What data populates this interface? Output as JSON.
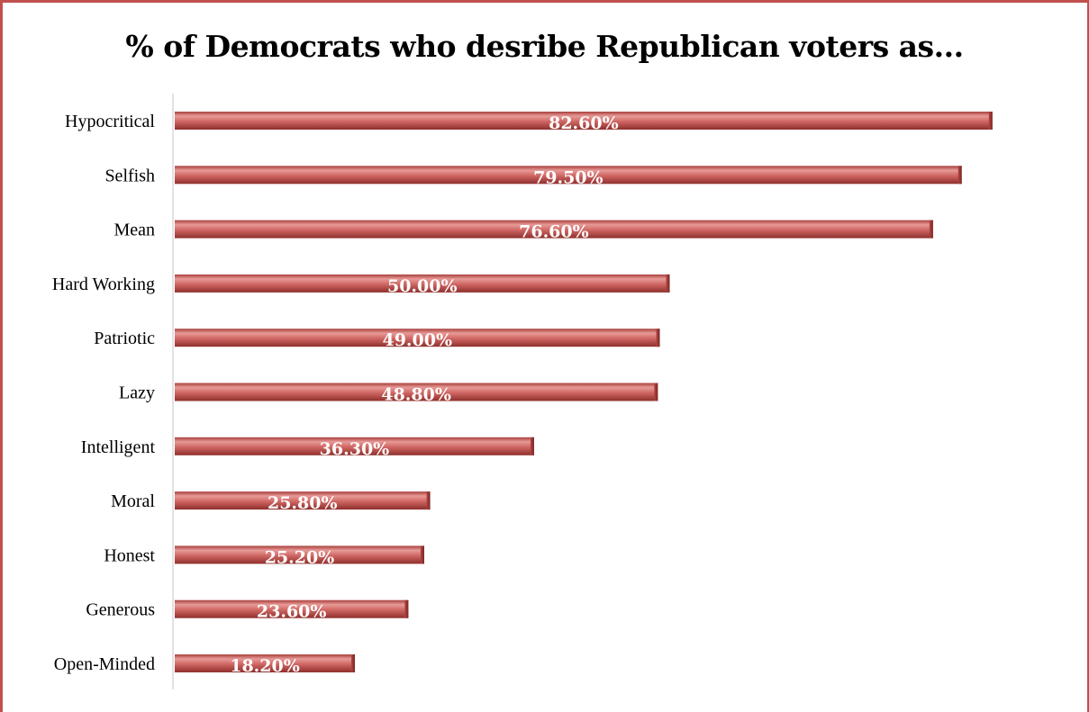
{
  "chart_data": {
    "type": "bar",
    "orientation": "horizontal",
    "title": "% of Democrats who desribe Republican voters as...",
    "categories": [
      "Hypocritical",
      "Selfish",
      "Mean",
      "Hard Working",
      "Patriotic",
      "Lazy",
      "Intelligent",
      "Moral",
      "Honest",
      "Generous",
      "Open-Minded"
    ],
    "values": [
      82.6,
      79.5,
      76.6,
      50.0,
      49.0,
      48.8,
      36.3,
      25.8,
      25.2,
      23.6,
      18.2
    ],
    "value_labels": [
      "82.60%",
      "79.50%",
      "76.60%",
      "50.00%",
      "49.00%",
      "48.80%",
      "36.30%",
      "25.80%",
      "25.20%",
      "23.60%",
      "18.20%"
    ],
    "xlabel": "",
    "ylabel": "",
    "xlim": [
      0,
      100
    ],
    "grid": false,
    "legend": "none",
    "bar_color": "#c0504d",
    "bar_highlight": "#e8a09e"
  }
}
